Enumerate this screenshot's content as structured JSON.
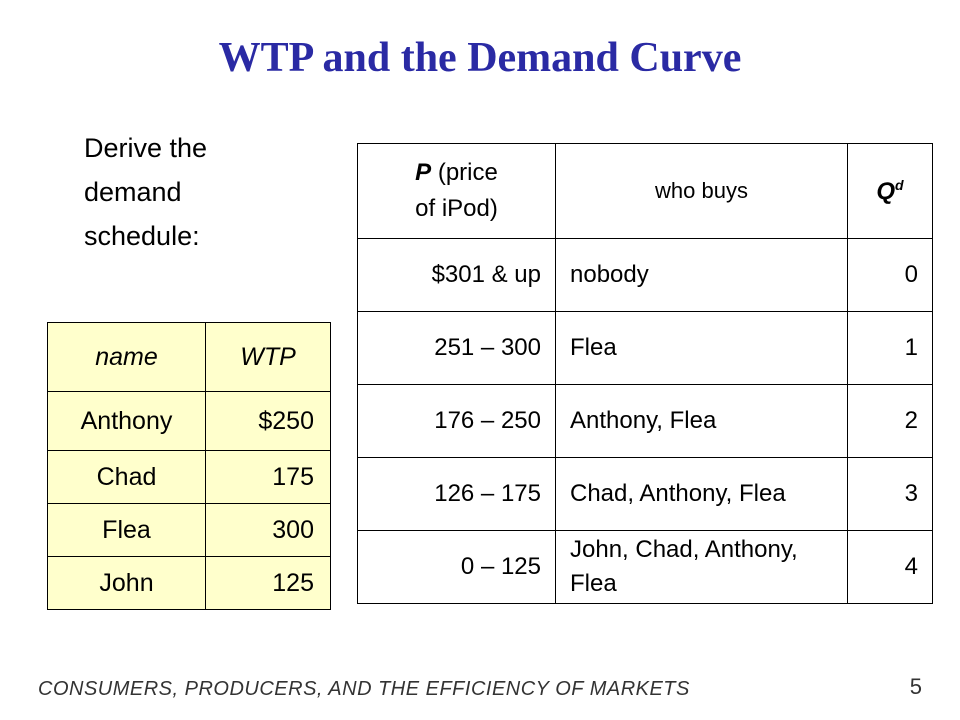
{
  "title": "WTP and the Demand Curve",
  "intro": {
    "line1": "Derive the",
    "line2": "demand",
    "line3": "schedule:"
  },
  "wtp_table": {
    "headers": {
      "name": "name",
      "wtp": "WTP"
    },
    "rows": [
      {
        "name": "Anthony",
        "wtp": "$250"
      },
      {
        "name": "Chad",
        "wtp": "175"
      },
      {
        "name": "Flea",
        "wtp": "300"
      },
      {
        "name": "John",
        "wtp": "125"
      }
    ]
  },
  "demand_table": {
    "headers": {
      "price_symbol": "P",
      "price_line1": "(price",
      "price_line2": "of iPod)",
      "who": "who buys",
      "qd_main": "Q",
      "qd_sup": "d"
    },
    "rows": [
      {
        "price": "$301 & up",
        "who": "nobody",
        "qd": "0"
      },
      {
        "price": "251 – 300",
        "who": "Flea",
        "qd": "1"
      },
      {
        "price": "176 – 250",
        "who": "Anthony, Flea",
        "qd": "2"
      },
      {
        "price": "126 – 175",
        "who": "Chad, Anthony, Flea",
        "qd": "3"
      },
      {
        "price": "0 – 125",
        "who": "John, Chad, Anthony, Flea",
        "qd": "4"
      }
    ]
  },
  "footer": {
    "chapter": "CONSUMERS, PRODUCERS, AND THE EFFICIENCY OF MARKETS",
    "page": "5"
  }
}
